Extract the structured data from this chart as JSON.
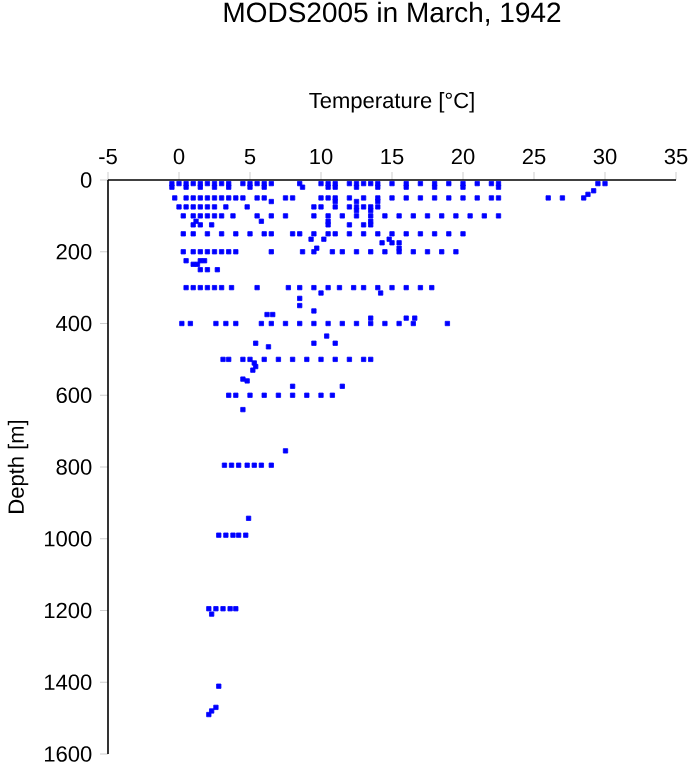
{
  "chart_data": {
    "type": "scatter",
    "title": "MODS2005 in March, 1942",
    "xlabel": "Temperature [°C]",
    "ylabel": "Depth [m]",
    "xlim": [
      -5,
      35
    ],
    "ylim": [
      1600,
      0
    ],
    "xticks": [
      -5,
      0,
      5,
      10,
      15,
      20,
      25,
      30,
      35
    ],
    "yticks": [
      0,
      200,
      400,
      600,
      800,
      1000,
      1200,
      1400,
      1600
    ],
    "marker": "square",
    "series": [
      {
        "color": "#0000ff",
        "x": [
          -0.5,
          0,
          0.5,
          1,
          1.5,
          2,
          2.5,
          3,
          3.5,
          4.5,
          5,
          5.5,
          6,
          6.5,
          8.5,
          10,
          10.5,
          11,
          12,
          12.5,
          13,
          13.5,
          14,
          15,
          16,
          17,
          18,
          19,
          20,
          21,
          22,
          22.5,
          30,
          29.5,
          -0.5,
          0.5,
          1.5,
          2.5,
          3.5,
          5,
          6,
          8.7,
          10.5,
          11,
          12.5,
          14,
          16,
          18,
          20,
          22.5,
          29.2,
          28.8,
          -0.3,
          0.5,
          1,
          1.5,
          2,
          2.5,
          3,
          3.5,
          4,
          4.5,
          5.5,
          6,
          7.5,
          8,
          10,
          10.5,
          11,
          12,
          13,
          14,
          15,
          16,
          17,
          18,
          19,
          20,
          21,
          22,
          22.5,
          26,
          27,
          28.5,
          6.5,
          11,
          12.5,
          14,
          0,
          0.5,
          1,
          1.5,
          2,
          2.5,
          3.3,
          4.8,
          9.5,
          10,
          11,
          12,
          12.5,
          13,
          13.5,
          14,
          12.5,
          13.5,
          0.3,
          1,
          1.5,
          2,
          2.5,
          3,
          3.8,
          5.5,
          6.5,
          7.5,
          9.5,
          10.5,
          11.5,
          12.5,
          13.5,
          14.5,
          15.5,
          16.5,
          17.5,
          18.5,
          19.5,
          20.5,
          21.5,
          22.5,
          1.2,
          5.8,
          10.5,
          13.5,
          1,
          1.5,
          2.3,
          10.5,
          12,
          13,
          13.5,
          0.3,
          1,
          2,
          3,
          4,
          5,
          6,
          6.5,
          8,
          8.5,
          9.5,
          10.5,
          11,
          12,
          13,
          14,
          15,
          16,
          17,
          18,
          19,
          20,
          9.3,
          10.2,
          14.8,
          14.3,
          15,
          15.5,
          9.7,
          15.5,
          0.3,
          1,
          1.5,
          2,
          2.5,
          3,
          3.5,
          4,
          6.5,
          8.7,
          9.5,
          10.8,
          11.5,
          12.5,
          13.5,
          14.5,
          15.5,
          16.5,
          17.5,
          18.5,
          19.5,
          0.5,
          1.5,
          1.8,
          1,
          1.3,
          1.5,
          2,
          2.7,
          0.5,
          1,
          1.5,
          2,
          2.5,
          3,
          3.7,
          5.5,
          7.7,
          8.5,
          9.5,
          10.5,
          11.3,
          12.3,
          13,
          14,
          15,
          16,
          17,
          17.8,
          10,
          14.2,
          8.5,
          8.5,
          9.5,
          6.2,
          6.6,
          13.5,
          16,
          16.6,
          0.2,
          0.8,
          2.6,
          3.3,
          4,
          5.8,
          6.5,
          7.5,
          8.5,
          9.5,
          10.5,
          11.5,
          12.5,
          13.5,
          14.5,
          15.5,
          16.5,
          18.9,
          10.4,
          5.4,
          9.5,
          11,
          6.3,
          3.1,
          3.5,
          4.5,
          5,
          6,
          7,
          8,
          9,
          10,
          11,
          12,
          13,
          13.5,
          5.3,
          5.4,
          5.2,
          4.5,
          4.8,
          8,
          11.5,
          3.5,
          4,
          5,
          6,
          7,
          8,
          9,
          10,
          10.8,
          4.5,
          7.5,
          3.2,
          3.7,
          4.2,
          4.8,
          5.3,
          5.8,
          6.5,
          4.9,
          2.8,
          3.3,
          3.8,
          4.2,
          4.7,
          2.1,
          2.6,
          3.1,
          3.6,
          4,
          2.3,
          2.8,
          2.6,
          2.3,
          2.1
        ],
        "values": [
          10,
          10,
          10,
          10,
          10,
          10,
          10,
          10,
          10,
          10,
          10,
          10,
          10,
          10,
          10,
          10,
          10,
          10,
          10,
          10,
          10,
          10,
          10,
          10,
          10,
          10,
          10,
          10,
          10,
          10,
          10,
          10,
          10,
          10,
          20,
          20,
          20,
          20,
          20,
          20,
          20,
          20,
          20,
          20,
          20,
          20,
          20,
          20,
          20,
          20,
          30,
          40,
          50,
          50,
          50,
          50,
          50,
          50,
          50,
          50,
          50,
          50,
          50,
          50,
          50,
          50,
          50,
          50,
          50,
          50,
          50,
          50,
          50,
          50,
          50,
          50,
          50,
          50,
          50,
          50,
          50,
          50,
          50,
          50,
          60,
          60,
          60,
          60,
          75,
          75,
          75,
          75,
          75,
          75,
          75,
          75,
          75,
          75,
          75,
          75,
          75,
          75,
          75,
          75,
          85,
          85,
          100,
          100,
          100,
          100,
          100,
          100,
          100,
          100,
          100,
          100,
          100,
          100,
          100,
          100,
          100,
          100,
          100,
          100,
          100,
          100,
          100,
          100,
          100,
          100,
          115,
          115,
          115,
          115,
          125,
          125,
          125,
          125,
          125,
          125,
          125,
          150,
          150,
          150,
          150,
          150,
          150,
          150,
          150,
          150,
          150,
          150,
          150,
          150,
          150,
          150,
          150,
          150,
          150,
          150,
          150,
          150,
          150,
          165,
          165,
          165,
          175,
          175,
          175,
          190,
          190,
          200,
          200,
          200,
          200,
          200,
          200,
          200,
          200,
          200,
          200,
          200,
          200,
          200,
          200,
          200,
          200,
          200,
          200,
          200,
          200,
          200,
          225,
          225,
          225,
          235,
          235,
          250,
          250,
          250,
          300,
          300,
          300,
          300,
          300,
          300,
          300,
          300,
          300,
          300,
          300,
          300,
          300,
          300,
          300,
          300,
          300,
          300,
          300,
          300,
          315,
          315,
          330,
          350,
          365,
          375,
          375,
          385,
          385,
          385,
          400,
          400,
          400,
          400,
          400,
          400,
          400,
          400,
          400,
          400,
          400,
          400,
          400,
          400,
          400,
          400,
          400,
          400,
          435,
          455,
          455,
          455,
          465,
          500,
          500,
          500,
          500,
          500,
          500,
          500,
          500,
          500,
          500,
          500,
          500,
          500,
          510,
          520,
          530,
          555,
          560,
          575,
          575,
          600,
          600,
          600,
          600,
          600,
          600,
          600,
          600,
          600,
          640,
          755,
          795,
          795,
          795,
          795,
          795,
          795,
          795,
          943,
          990,
          990,
          990,
          990,
          990,
          1195,
          1195,
          1195,
          1195,
          1195,
          1210,
          1411,
          1470,
          1480,
          1490
        ]
      }
    ]
  }
}
